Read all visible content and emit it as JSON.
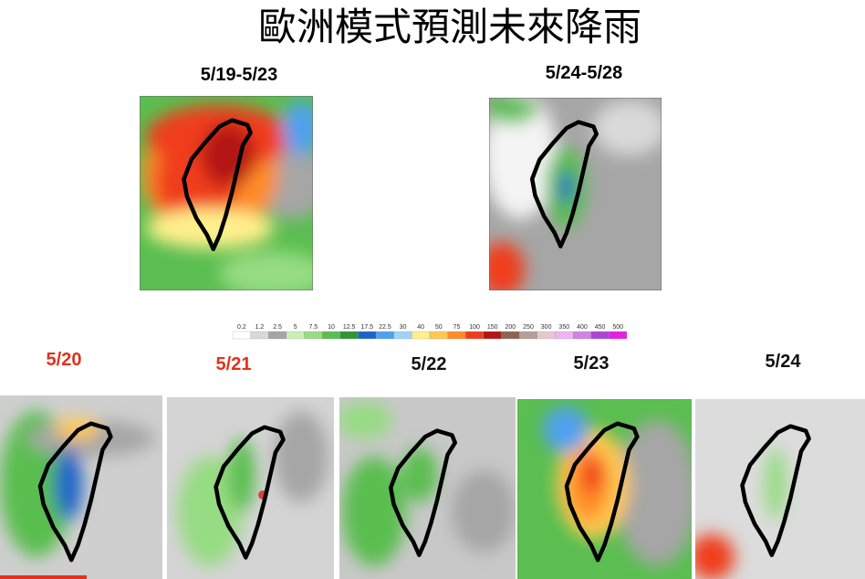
{
  "title": "歐洲模式預測未來降雨",
  "maps": [
    {
      "label": "5/19-5/23"
    },
    {
      "label": "5/24-5/28"
    }
  ],
  "scale": {
    "labels": [
      0.2,
      1.2,
      2.5,
      5,
      7.5,
      10,
      12.5,
      17.5,
      22.5,
      30,
      40,
      50,
      75,
      100,
      150,
      200,
      250,
      300,
      350,
      400,
      450,
      500
    ],
    "colors": [
      "#ffffff",
      "#d9d9d9",
      "#a6a6a6",
      "#c8f0b4",
      "#96dc82",
      "#5abe50",
      "#2e9632",
      "#1e64c8",
      "#50a0f0",
      "#a0d2fa",
      "#fff08c",
      "#ffc850",
      "#ff8c28",
      "#f03c1e",
      "#b41414",
      "#8c6450",
      "#b4a096",
      "#e6c8d2",
      "#f0b4f0",
      "#d282e6",
      "#aa46d2",
      "#e61ee6"
    ]
  },
  "daily": [
    {
      "label": "5/20",
      "color": "#e0321e"
    },
    {
      "label": "5/21",
      "color": "#e0321e"
    },
    {
      "label": "5/22",
      "color": "#111111"
    },
    {
      "label": "5/23",
      "color": "#111111"
    },
    {
      "label": "5/24",
      "color": "#111111"
    }
  ]
}
